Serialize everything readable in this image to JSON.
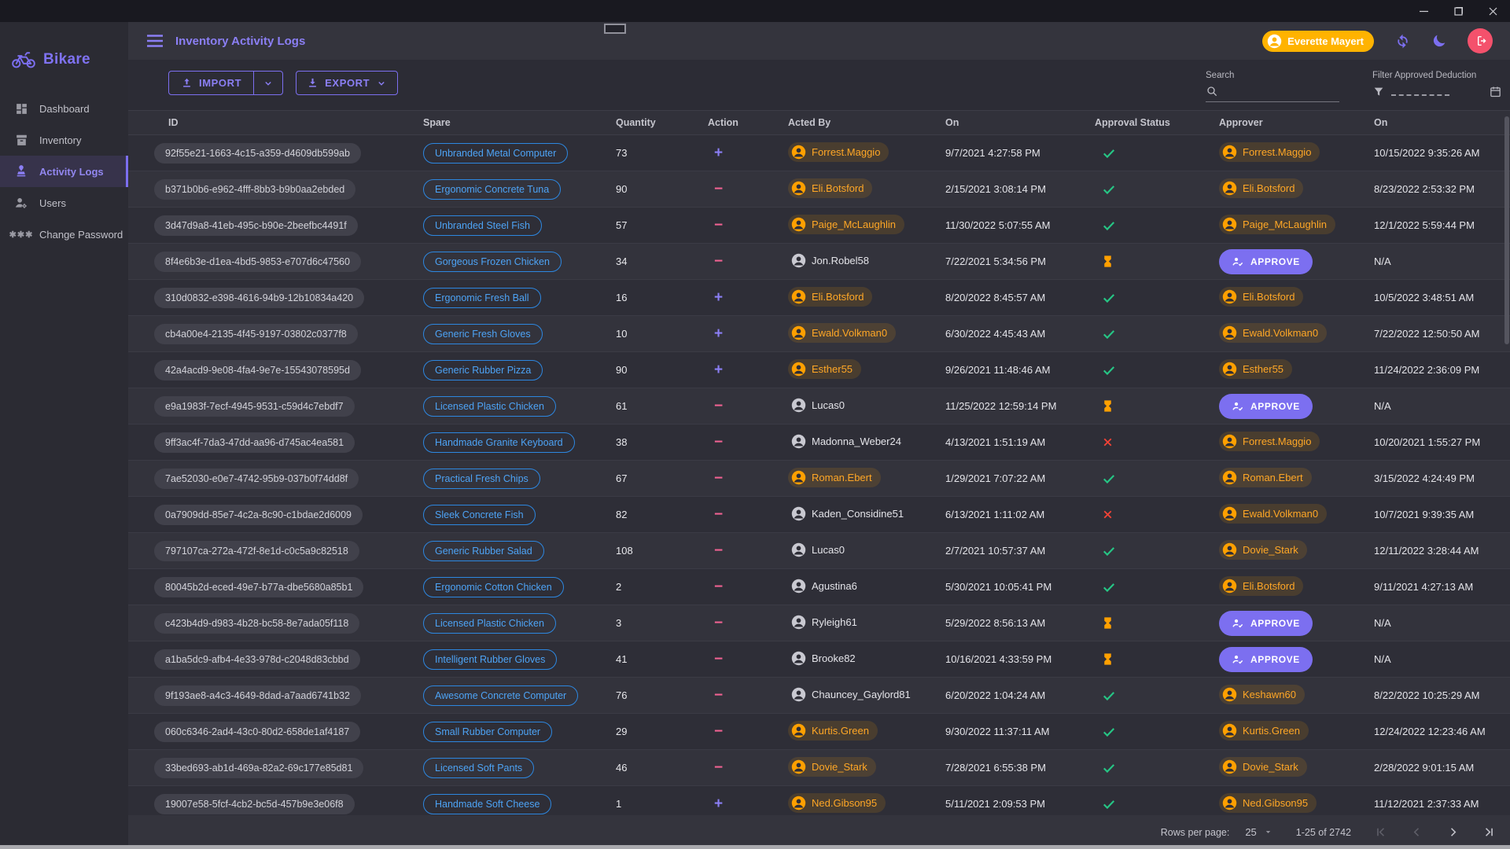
{
  "app": {
    "name": "Bikare"
  },
  "header": {
    "title": "Inventory Activity Logs",
    "user_badge": "Everette Mayert"
  },
  "sidebar": {
    "items": [
      {
        "label": "Dashboard",
        "icon": "dashboard-icon",
        "active": false
      },
      {
        "label": "Inventory",
        "icon": "inventory-box-icon",
        "active": false
      },
      {
        "label": "Activity Logs",
        "icon": "approval-stamp-icon",
        "active": true
      },
      {
        "label": "Users",
        "icon": "manage-users-icon",
        "active": false
      },
      {
        "label": "Change Password",
        "icon": "password-asterisks-icon",
        "active": false
      }
    ]
  },
  "toolbar": {
    "import_label": "IMPORT",
    "export_label": "EXPORT",
    "search_label": "Search",
    "search_value": "",
    "filter_label": "Filter Approved Deduction"
  },
  "table": {
    "columns": [
      "ID",
      "Spare",
      "Quantity",
      "Action",
      "Acted By",
      "On",
      "Approval Status",
      "Approver",
      "On"
    ],
    "approve_button_label": "APPROVE",
    "na_label": "N/A",
    "rows": [
      {
        "id": "92f55e21-1663-4c15-a359-d4609db599ab",
        "spare": "Unbranded Metal Computer",
        "quantity": "73",
        "action": "+",
        "acted_by": {
          "name": "Forrest.Maggio",
          "highlight": true
        },
        "on": "9/7/2021 4:27:58 PM",
        "status": "approved",
        "approver": {
          "type": "user",
          "name": "Forrest.Maggio"
        },
        "approved_on": "10/15/2022 9:35:26 AM"
      },
      {
        "id": "b371b0b6-e962-4fff-8bb3-b9b0aa2ebded",
        "spare": "Ergonomic Concrete Tuna",
        "quantity": "90",
        "action": "−",
        "acted_by": {
          "name": "Eli.Botsford",
          "highlight": true
        },
        "on": "2/15/2021 3:08:14 PM",
        "status": "approved",
        "approver": {
          "type": "user",
          "name": "Eli.Botsford"
        },
        "approved_on": "8/23/2022 2:53:32 PM"
      },
      {
        "id": "3d47d9a8-41eb-495c-b90e-2beefbc4491f",
        "spare": "Unbranded Steel Fish",
        "quantity": "57",
        "action": "−",
        "acted_by": {
          "name": "Paige_McLaughlin",
          "highlight": true
        },
        "on": "11/30/2022 5:07:55 AM",
        "status": "approved",
        "approver": {
          "type": "user",
          "name": "Paige_McLaughlin"
        },
        "approved_on": "12/1/2022 5:59:44 PM"
      },
      {
        "id": "8f4e6b3e-d1ea-4bd5-9853-e707d6c47560",
        "spare": "Gorgeous Frozen Chicken",
        "quantity": "34",
        "action": "−",
        "acted_by": {
          "name": "Jon.Robel58",
          "highlight": false
        },
        "on": "7/22/2021 5:34:56 PM",
        "status": "pending",
        "approver": {
          "type": "button"
        },
        "approved_on": "N/A"
      },
      {
        "id": "310d0832-e398-4616-94b9-12b10834a420",
        "spare": "Ergonomic Fresh Ball",
        "quantity": "16",
        "action": "+",
        "acted_by": {
          "name": "Eli.Botsford",
          "highlight": true
        },
        "on": "8/20/2022 8:45:57 AM",
        "status": "approved",
        "approver": {
          "type": "user",
          "name": "Eli.Botsford"
        },
        "approved_on": "10/5/2022 3:48:51 AM"
      },
      {
        "id": "cb4a00e4-2135-4f45-9197-03802c0377f8",
        "spare": "Generic Fresh Gloves",
        "quantity": "10",
        "action": "+",
        "acted_by": {
          "name": "Ewald.Volkman0",
          "highlight": true
        },
        "on": "6/30/2022 4:45:43 AM",
        "status": "approved",
        "approver": {
          "type": "user",
          "name": "Ewald.Volkman0"
        },
        "approved_on": "7/22/2022 12:50:50 AM"
      },
      {
        "id": "42a4acd9-9e08-4fa4-9e7e-15543078595d",
        "spare": "Generic Rubber Pizza",
        "quantity": "90",
        "action": "+",
        "acted_by": {
          "name": "Esther55",
          "highlight": true
        },
        "on": "9/26/2021 11:48:46 AM",
        "status": "approved",
        "approver": {
          "type": "user",
          "name": "Esther55"
        },
        "approved_on": "11/24/2022 2:36:09 PM"
      },
      {
        "id": "e9a1983f-7ecf-4945-9531-c59d4c7ebdf7",
        "spare": "Licensed Plastic Chicken",
        "quantity": "61",
        "action": "−",
        "acted_by": {
          "name": "Lucas0",
          "highlight": false
        },
        "on": "11/25/2022 12:59:14 PM",
        "status": "pending",
        "approver": {
          "type": "button"
        },
        "approved_on": "N/A"
      },
      {
        "id": "9ff3ac4f-7da3-47dd-aa96-d745ac4ea581",
        "spare": "Handmade Granite Keyboard",
        "quantity": "38",
        "action": "−",
        "acted_by": {
          "name": "Madonna_Weber24",
          "highlight": false
        },
        "on": "4/13/2021 1:51:19 AM",
        "status": "rejected",
        "approver": {
          "type": "user",
          "name": "Forrest.Maggio"
        },
        "approved_on": "10/20/2021 1:55:27 PM"
      },
      {
        "id": "7ae52030-e0e7-4742-95b9-037b0f74dd8f",
        "spare": "Practical Fresh Chips",
        "quantity": "67",
        "action": "−",
        "acted_by": {
          "name": "Roman.Ebert",
          "highlight": true
        },
        "on": "1/29/2021 7:07:22 AM",
        "status": "approved",
        "approver": {
          "type": "user",
          "name": "Roman.Ebert"
        },
        "approved_on": "3/15/2022 4:24:49 PM"
      },
      {
        "id": "0a7909dd-85e7-4c2a-8c90-c1bdae2d6009",
        "spare": "Sleek Concrete Fish",
        "quantity": "82",
        "action": "−",
        "acted_by": {
          "name": "Kaden_Considine51",
          "highlight": false
        },
        "on": "6/13/2021 1:11:02 AM",
        "status": "rejected",
        "approver": {
          "type": "user",
          "name": "Ewald.Volkman0"
        },
        "approved_on": "10/7/2021 9:39:35 AM"
      },
      {
        "id": "797107ca-272a-472f-8e1d-c0c5a9c82518",
        "spare": "Generic Rubber Salad",
        "quantity": "108",
        "action": "−",
        "acted_by": {
          "name": "Lucas0",
          "highlight": false
        },
        "on": "2/7/2021 10:57:37 AM",
        "status": "approved",
        "approver": {
          "type": "user",
          "name": "Dovie_Stark"
        },
        "approved_on": "12/11/2022 3:28:44 AM"
      },
      {
        "id": "80045b2d-eced-49e7-b77a-dbe5680a85b1",
        "spare": "Ergonomic Cotton Chicken",
        "quantity": "2",
        "action": "−",
        "acted_by": {
          "name": "Agustina6",
          "highlight": false
        },
        "on": "5/30/2021 10:05:41 PM",
        "status": "approved",
        "approver": {
          "type": "user",
          "name": "Eli.Botsford"
        },
        "approved_on": "9/11/2021 4:27:13 AM"
      },
      {
        "id": "c423b4d9-d983-4b28-bc58-8e7ada05f118",
        "spare": "Licensed Plastic Chicken",
        "quantity": "3",
        "action": "−",
        "acted_by": {
          "name": "Ryleigh61",
          "highlight": false
        },
        "on": "5/29/2022 8:56:13 AM",
        "status": "pending",
        "approver": {
          "type": "button"
        },
        "approved_on": "N/A"
      },
      {
        "id": "a1ba5dc9-afb4-4e33-978d-c2048d83cbbd",
        "spare": "Intelligent Rubber Gloves",
        "quantity": "41",
        "action": "−",
        "acted_by": {
          "name": "Brooke82",
          "highlight": false
        },
        "on": "10/16/2021 4:33:59 PM",
        "status": "pending",
        "approver": {
          "type": "button"
        },
        "approved_on": "N/A"
      },
      {
        "id": "9f193ae8-a4c3-4649-8dad-a7aad6741b32",
        "spare": "Awesome Concrete Computer",
        "quantity": "76",
        "action": "−",
        "acted_by": {
          "name": "Chauncey_Gaylord81",
          "highlight": false
        },
        "on": "6/20/2022 1:04:24 AM",
        "status": "approved",
        "approver": {
          "type": "user",
          "name": "Keshawn60"
        },
        "approved_on": "8/22/2022 10:25:29 AM"
      },
      {
        "id": "060c6346-2ad4-43c0-80d2-658de1af4187",
        "spare": "Small Rubber Computer",
        "quantity": "29",
        "action": "−",
        "acted_by": {
          "name": "Kurtis.Green",
          "highlight": true
        },
        "on": "9/30/2022 11:37:11 AM",
        "status": "approved",
        "approver": {
          "type": "user",
          "name": "Kurtis.Green"
        },
        "approved_on": "12/24/2022 12:23:46 AM"
      },
      {
        "id": "33bed693-ab1d-469a-82a2-69c177e85d81",
        "spare": "Licensed Soft Pants",
        "quantity": "46",
        "action": "−",
        "acted_by": {
          "name": "Dovie_Stark",
          "highlight": true
        },
        "on": "7/28/2021 6:55:38 PM",
        "status": "approved",
        "approver": {
          "type": "user",
          "name": "Dovie_Stark"
        },
        "approved_on": "2/28/2022 9:01:15 AM"
      },
      {
        "id": "19007e58-5fcf-4cb2-bc5d-457b9e3e06f8",
        "spare": "Handmade Soft Cheese",
        "quantity": "1",
        "action": "+",
        "acted_by": {
          "name": "Ned.Gibson95",
          "highlight": true
        },
        "on": "5/11/2021 2:09:53 PM",
        "status": "approved",
        "approver": {
          "type": "user",
          "name": "Ned.Gibson95"
        },
        "approved_on": "11/12/2021 2:37:33 AM"
      }
    ]
  },
  "pagination": {
    "rows_per_page_label": "Rows per page:",
    "rows_per_page_value": "25",
    "range_label": "1-25 of 2742"
  },
  "colors": {
    "accent": "#7c6ff0",
    "action_add": "#8b7ff5",
    "action_remove": "#f06292",
    "approved": "#26c685",
    "pending": "#ffa000",
    "rejected": "#f44336",
    "user_highlight": "#ffa726",
    "spare_chip": "#4da3f5",
    "badge": "#ffb300",
    "logout": "#f4516c"
  }
}
